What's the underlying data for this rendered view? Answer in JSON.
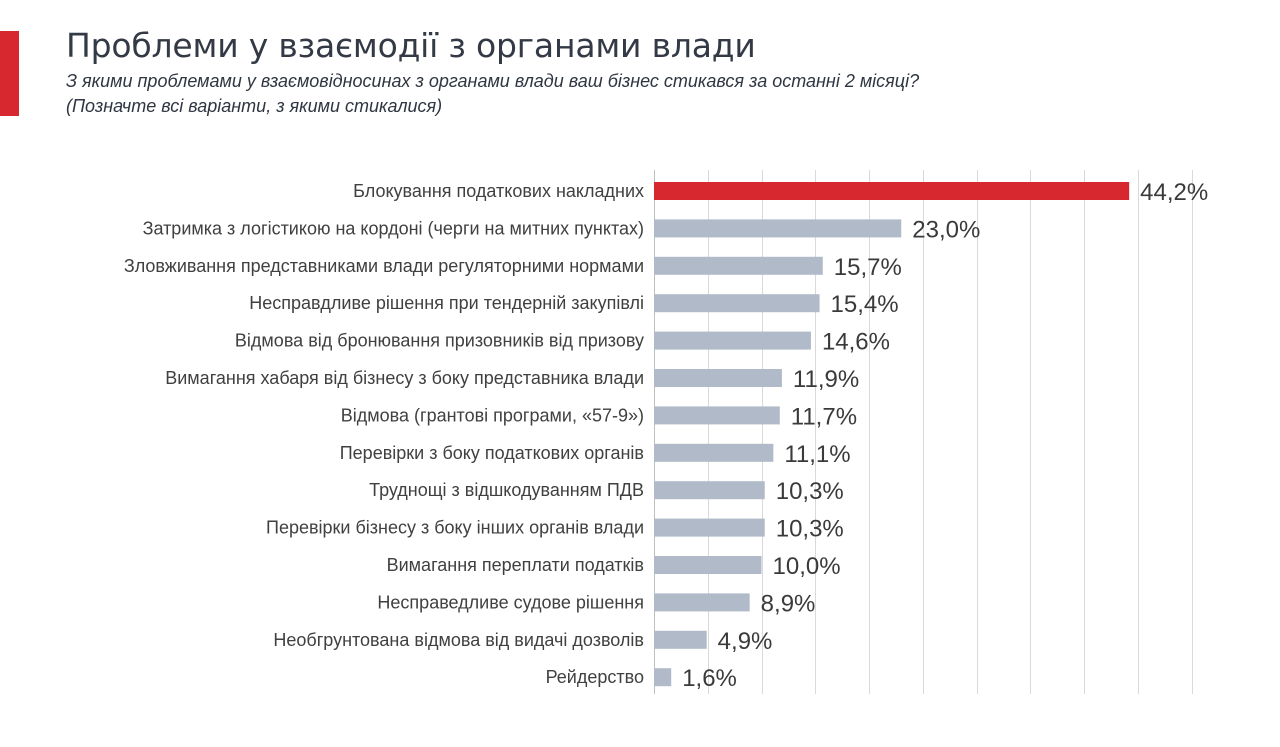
{
  "header": {
    "title": "Проблеми у взаємодії з органами влади",
    "subtitle_line1": "З якими проблемами у взаємовідносинах з органами влади ваш бізнес стикався за останні 2 місяці?",
    "subtitle_line2": "(Позначте всі варіанти, з якими стикалися)"
  },
  "colors": {
    "accent": "#d7282f",
    "highlight_bar": "#d7282f",
    "bar": "#b0bac8",
    "grid": "#d9d9d9"
  },
  "chart_data": {
    "type": "bar",
    "orientation": "horizontal",
    "categories": [
      "Блокування податкових накладних",
      "Затримка з логістикою на кордоні (черги на митних пунктах)",
      "Зловживання представниками влади регуляторними нормами",
      "Несправдливе рішення при тендерній закупівлі",
      "Відмова від бронювання призовників від призову",
      "Вимагання хабаря від бізнесу з боку представника влади",
      "Відмова (грантові програми, «57-9»)",
      "Перевірки з боку податкових органів",
      "Труднощі з відшкодуванням ПДВ",
      "Перевірки бізнесу з боку інших органів влади",
      "Вимагання переплати податків",
      "Несправедливе судове рішення",
      "Необгрунтована відмова від видачі дозволів",
      "Рейдерство"
    ],
    "values": [
      44.2,
      23.0,
      15.7,
      15.4,
      14.6,
      11.9,
      11.7,
      11.1,
      10.3,
      10.3,
      10.0,
      8.9,
      4.9,
      1.6
    ],
    "value_labels": [
      "44,2%",
      "23,0%",
      "15,7%",
      "15,4%",
      "14,6%",
      "11,9%",
      "11,7%",
      "11,1%",
      "10,3%",
      "10,3%",
      "10,0%",
      "8,9%",
      "4,9%",
      "1,6%"
    ],
    "highlighted_index": 0,
    "unit": "%",
    "xlim": [
      0,
      50
    ],
    "grid": true,
    "gridline_step": 5,
    "legend": "none"
  }
}
